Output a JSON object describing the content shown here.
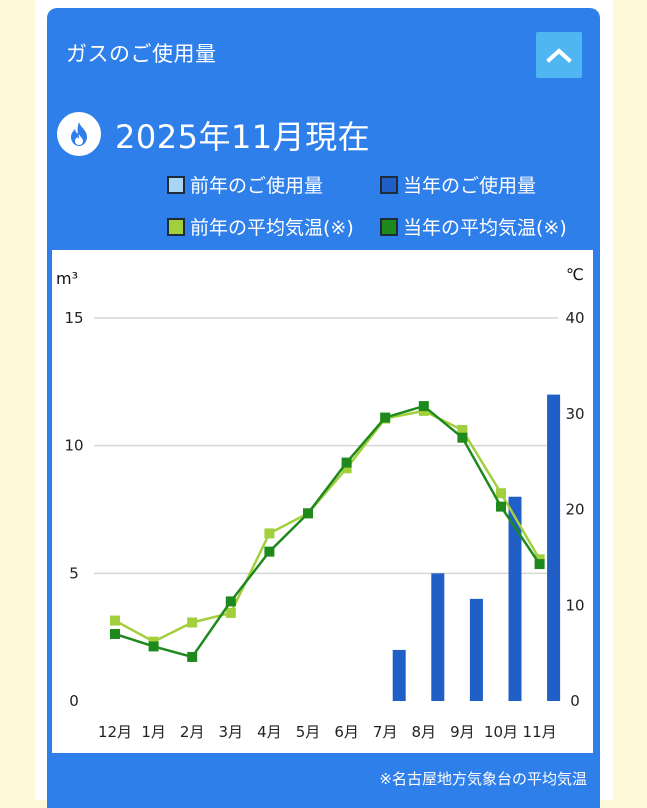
{
  "card": {
    "title": "ガスのご使用量",
    "collapse_icon": "chevron-up-icon",
    "flame_icon": "flame-icon",
    "as_of": "2025年11月現在"
  },
  "legend": {
    "prev_usage": "前年のご使用量",
    "curr_usage": "当年のご使用量",
    "prev_temp": "前年の平均気温(※)",
    "curr_temp": "当年の平均気温(※)"
  },
  "colors": {
    "card_blue": "#2f7fea",
    "prev_usage": "#a9d6f5",
    "curr_usage": "#1f5fc6",
    "prev_temp": "#a2cf3c",
    "curr_temp": "#1e8a1e"
  },
  "chart_data": {
    "type": "bar+line",
    "categories": [
      "12月",
      "1月",
      "2月",
      "3月",
      "4月",
      "5月",
      "6月",
      "7月",
      "8月",
      "9月",
      "10月",
      "11月"
    ],
    "y_left": {
      "label": "m³",
      "ticks": [
        0,
        5,
        10,
        15
      ],
      "range": [
        0,
        15
      ]
    },
    "y_right": {
      "label": "℃",
      "ticks": [
        0,
        10,
        20,
        30,
        40
      ],
      "range": [
        0,
        40
      ]
    },
    "grid": true,
    "series": [
      {
        "name": "前年のご使用量",
        "kind": "bar",
        "axis": "left",
        "values": [
          null,
          null,
          null,
          null,
          null,
          null,
          null,
          null,
          null,
          null,
          null,
          null
        ]
      },
      {
        "name": "当年のご使用量",
        "kind": "bar",
        "axis": "left",
        "values": [
          null,
          null,
          null,
          null,
          null,
          null,
          null,
          2,
          5,
          4,
          8,
          12
        ]
      },
      {
        "name": "前年の平均気温(※)",
        "kind": "line",
        "axis": "right",
        "values": [
          8.4,
          6.2,
          8.2,
          9.2,
          17.5,
          19.6,
          24.3,
          29.5,
          30.3,
          28.3,
          21.7,
          14.8
        ]
      },
      {
        "name": "当年の平均気温(※)",
        "kind": "line",
        "axis": "right",
        "values": [
          7.0,
          5.7,
          4.6,
          10.4,
          15.6,
          19.6,
          24.9,
          29.6,
          30.8,
          27.5,
          20.3,
          14.3
        ]
      }
    ]
  },
  "footnote": "※名古屋地方気象台の平均気温"
}
